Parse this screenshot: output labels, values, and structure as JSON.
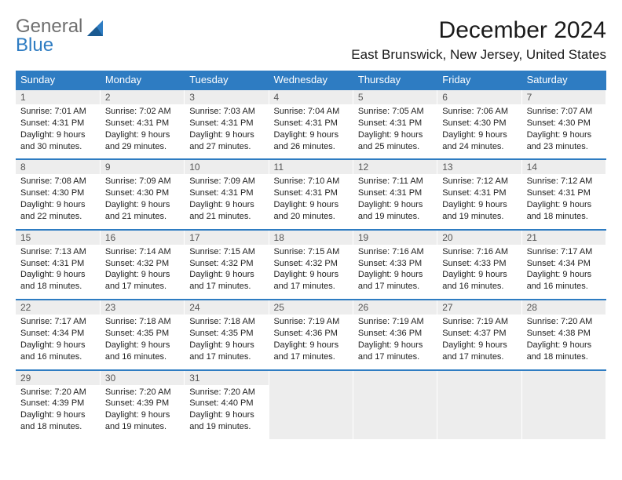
{
  "logo": {
    "line1": "General",
    "line2": "Blue"
  },
  "title": "December 2024",
  "location": "East Brunswick, New Jersey, United States",
  "colors": {
    "header_bg": "#2e7cc2",
    "header_text": "#ffffff",
    "daynum_bg": "#ededed",
    "row_sep": "#2e7cc2"
  },
  "weekdays": [
    "Sunday",
    "Monday",
    "Tuesday",
    "Wednesday",
    "Thursday",
    "Friday",
    "Saturday"
  ],
  "weeks": [
    [
      {
        "n": "1",
        "sr": "Sunrise: 7:01 AM",
        "ss": "Sunset: 4:31 PM",
        "d1": "Daylight: 9 hours",
        "d2": "and 30 minutes."
      },
      {
        "n": "2",
        "sr": "Sunrise: 7:02 AM",
        "ss": "Sunset: 4:31 PM",
        "d1": "Daylight: 9 hours",
        "d2": "and 29 minutes."
      },
      {
        "n": "3",
        "sr": "Sunrise: 7:03 AM",
        "ss": "Sunset: 4:31 PM",
        "d1": "Daylight: 9 hours",
        "d2": "and 27 minutes."
      },
      {
        "n": "4",
        "sr": "Sunrise: 7:04 AM",
        "ss": "Sunset: 4:31 PM",
        "d1": "Daylight: 9 hours",
        "d2": "and 26 minutes."
      },
      {
        "n": "5",
        "sr": "Sunrise: 7:05 AM",
        "ss": "Sunset: 4:31 PM",
        "d1": "Daylight: 9 hours",
        "d2": "and 25 minutes."
      },
      {
        "n": "6",
        "sr": "Sunrise: 7:06 AM",
        "ss": "Sunset: 4:30 PM",
        "d1": "Daylight: 9 hours",
        "d2": "and 24 minutes."
      },
      {
        "n": "7",
        "sr": "Sunrise: 7:07 AM",
        "ss": "Sunset: 4:30 PM",
        "d1": "Daylight: 9 hours",
        "d2": "and 23 minutes."
      }
    ],
    [
      {
        "n": "8",
        "sr": "Sunrise: 7:08 AM",
        "ss": "Sunset: 4:30 PM",
        "d1": "Daylight: 9 hours",
        "d2": "and 22 minutes."
      },
      {
        "n": "9",
        "sr": "Sunrise: 7:09 AM",
        "ss": "Sunset: 4:30 PM",
        "d1": "Daylight: 9 hours",
        "d2": "and 21 minutes."
      },
      {
        "n": "10",
        "sr": "Sunrise: 7:09 AM",
        "ss": "Sunset: 4:31 PM",
        "d1": "Daylight: 9 hours",
        "d2": "and 21 minutes."
      },
      {
        "n": "11",
        "sr": "Sunrise: 7:10 AM",
        "ss": "Sunset: 4:31 PM",
        "d1": "Daylight: 9 hours",
        "d2": "and 20 minutes."
      },
      {
        "n": "12",
        "sr": "Sunrise: 7:11 AM",
        "ss": "Sunset: 4:31 PM",
        "d1": "Daylight: 9 hours",
        "d2": "and 19 minutes."
      },
      {
        "n": "13",
        "sr": "Sunrise: 7:12 AM",
        "ss": "Sunset: 4:31 PM",
        "d1": "Daylight: 9 hours",
        "d2": "and 19 minutes."
      },
      {
        "n": "14",
        "sr": "Sunrise: 7:12 AM",
        "ss": "Sunset: 4:31 PM",
        "d1": "Daylight: 9 hours",
        "d2": "and 18 minutes."
      }
    ],
    [
      {
        "n": "15",
        "sr": "Sunrise: 7:13 AM",
        "ss": "Sunset: 4:31 PM",
        "d1": "Daylight: 9 hours",
        "d2": "and 18 minutes."
      },
      {
        "n": "16",
        "sr": "Sunrise: 7:14 AM",
        "ss": "Sunset: 4:32 PM",
        "d1": "Daylight: 9 hours",
        "d2": "and 17 minutes."
      },
      {
        "n": "17",
        "sr": "Sunrise: 7:15 AM",
        "ss": "Sunset: 4:32 PM",
        "d1": "Daylight: 9 hours",
        "d2": "and 17 minutes."
      },
      {
        "n": "18",
        "sr": "Sunrise: 7:15 AM",
        "ss": "Sunset: 4:32 PM",
        "d1": "Daylight: 9 hours",
        "d2": "and 17 minutes."
      },
      {
        "n": "19",
        "sr": "Sunrise: 7:16 AM",
        "ss": "Sunset: 4:33 PM",
        "d1": "Daylight: 9 hours",
        "d2": "and 17 minutes."
      },
      {
        "n": "20",
        "sr": "Sunrise: 7:16 AM",
        "ss": "Sunset: 4:33 PM",
        "d1": "Daylight: 9 hours",
        "d2": "and 16 minutes."
      },
      {
        "n": "21",
        "sr": "Sunrise: 7:17 AM",
        "ss": "Sunset: 4:34 PM",
        "d1": "Daylight: 9 hours",
        "d2": "and 16 minutes."
      }
    ],
    [
      {
        "n": "22",
        "sr": "Sunrise: 7:17 AM",
        "ss": "Sunset: 4:34 PM",
        "d1": "Daylight: 9 hours",
        "d2": "and 16 minutes."
      },
      {
        "n": "23",
        "sr": "Sunrise: 7:18 AM",
        "ss": "Sunset: 4:35 PM",
        "d1": "Daylight: 9 hours",
        "d2": "and 16 minutes."
      },
      {
        "n": "24",
        "sr": "Sunrise: 7:18 AM",
        "ss": "Sunset: 4:35 PM",
        "d1": "Daylight: 9 hours",
        "d2": "and 17 minutes."
      },
      {
        "n": "25",
        "sr": "Sunrise: 7:19 AM",
        "ss": "Sunset: 4:36 PM",
        "d1": "Daylight: 9 hours",
        "d2": "and 17 minutes."
      },
      {
        "n": "26",
        "sr": "Sunrise: 7:19 AM",
        "ss": "Sunset: 4:36 PM",
        "d1": "Daylight: 9 hours",
        "d2": "and 17 minutes."
      },
      {
        "n": "27",
        "sr": "Sunrise: 7:19 AM",
        "ss": "Sunset: 4:37 PM",
        "d1": "Daylight: 9 hours",
        "d2": "and 17 minutes."
      },
      {
        "n": "28",
        "sr": "Sunrise: 7:20 AM",
        "ss": "Sunset: 4:38 PM",
        "d1": "Daylight: 9 hours",
        "d2": "and 18 minutes."
      }
    ],
    [
      {
        "n": "29",
        "sr": "Sunrise: 7:20 AM",
        "ss": "Sunset: 4:39 PM",
        "d1": "Daylight: 9 hours",
        "d2": "and 18 minutes."
      },
      {
        "n": "30",
        "sr": "Sunrise: 7:20 AM",
        "ss": "Sunset: 4:39 PM",
        "d1": "Daylight: 9 hours",
        "d2": "and 19 minutes."
      },
      {
        "n": "31",
        "sr": "Sunrise: 7:20 AM",
        "ss": "Sunset: 4:40 PM",
        "d1": "Daylight: 9 hours",
        "d2": "and 19 minutes."
      },
      null,
      null,
      null,
      null
    ]
  ]
}
